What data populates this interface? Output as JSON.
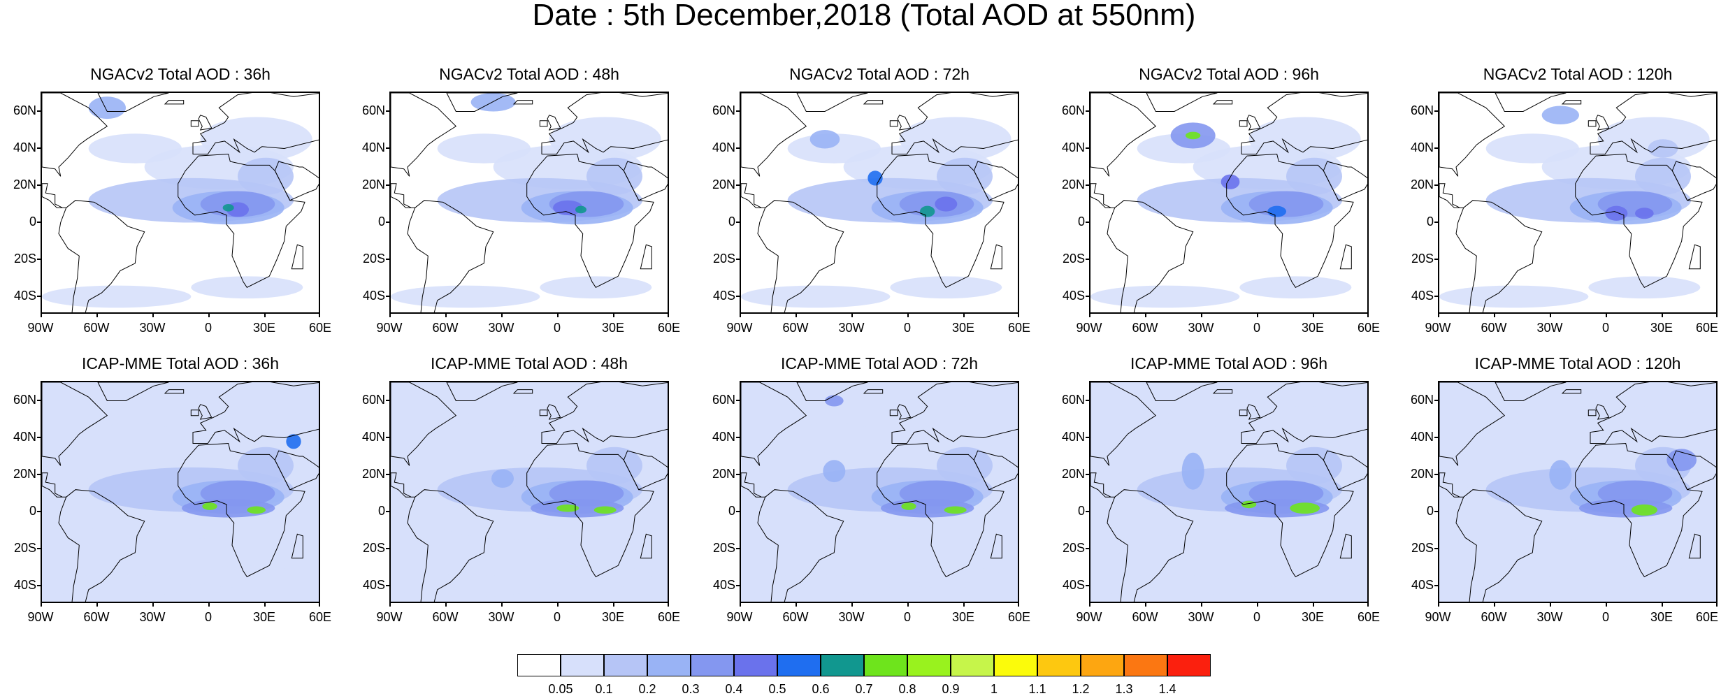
{
  "title": "Date : 5th December,2018 (Total AOD at 550nm)",
  "rows": [
    {
      "model": "NGACv2",
      "panels": [
        {
          "label": "NGACv2 Total AOD : 36h"
        },
        {
          "label": "NGACv2 Total AOD : 48h"
        },
        {
          "label": "NGACv2 Total AOD : 72h"
        },
        {
          "label": "NGACv2 Total AOD : 96h"
        },
        {
          "label": "NGACv2 Total AOD : 120h"
        }
      ]
    },
    {
      "model": "ICAP-MME",
      "panels": [
        {
          "label": "ICAP-MME Total AOD : 36h"
        },
        {
          "label": "ICAP-MME Total AOD : 48h"
        },
        {
          "label": "ICAP-MME Total AOD : 72h"
        },
        {
          "label": "ICAP-MME Total AOD : 96h"
        },
        {
          "label": "ICAP-MME Total AOD : 120h"
        }
      ]
    }
  ],
  "map_extent": {
    "lon_min": -90,
    "lon_max": 60,
    "lat_min": -50,
    "lat_max": 70
  },
  "lat_ticks": [
    {
      "value": 60,
      "label": "60N"
    },
    {
      "value": 40,
      "label": "40N"
    },
    {
      "value": 20,
      "label": "20N"
    },
    {
      "value": 0,
      "label": "0"
    },
    {
      "value": -20,
      "label": "20S"
    },
    {
      "value": -40,
      "label": "40S"
    }
  ],
  "lon_ticks": [
    {
      "value": -90,
      "label": "90W"
    },
    {
      "value": -60,
      "label": "60W"
    },
    {
      "value": -30,
      "label": "30W"
    },
    {
      "value": 0,
      "label": "0"
    },
    {
      "value": 30,
      "label": "30E"
    },
    {
      "value": 60,
      "label": "60E"
    }
  ],
  "colorbar": {
    "colors": [
      "#ffffff",
      "#d7e0fb",
      "#b6c5f6",
      "#99b3f5",
      "#8497f0",
      "#6a72ec",
      "#1f6ef0",
      "#11978f",
      "#6ee41c",
      "#99f21e",
      "#c6f54a",
      "#fbfb0b",
      "#fdc810",
      "#fda611",
      "#fb7712",
      "#fb200e"
    ],
    "labels": [
      "0.05",
      "0.1",
      "0.2",
      "0.3",
      "0.4",
      "0.5",
      "0.6",
      "0.7",
      "0.8",
      "0.9",
      "1",
      "1.1",
      "1.2",
      "1.3",
      "1.4"
    ]
  }
}
